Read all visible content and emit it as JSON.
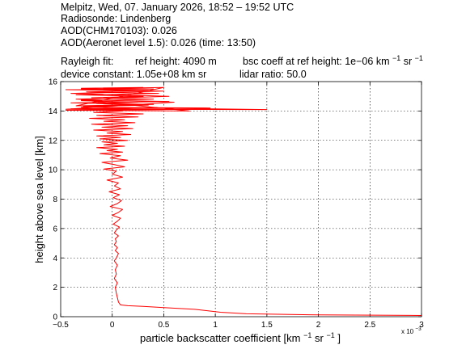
{
  "header": {
    "line1": "Melpitz, Wed, 07. January 2026, 18:52 – 19:52 UTC",
    "line2": "Radiosonde: Lindenberg",
    "line3": "AOD(CHM170103): 0.026",
    "line4": "AOD(Aeronet level 1.5): 0.026   (time: 13:50)",
    "rayleigh_fit_label": "Rayleigh fit:",
    "ref_height": "ref height: 4090 m",
    "bsc_coeff_prefix": "bsc coeff at ref height: 1e−06 km",
    "device_constant": "device constant: 1.05e+08 km sr",
    "lidar_ratio": "lidar ratio: 50.0",
    "unit_exp_minus1": "−1",
    "unit_sr": "sr"
  },
  "chart_data": {
    "type": "line",
    "xlabel_prefix": "particle backscatter coefficient [km",
    "xlabel_sr": "sr",
    "xlabel_suffix": "]",
    "xlabel_exp": "−1",
    "x_multiplier_base": "x 10",
    "x_multiplier_exp": "−3",
    "ylabel": "height above sea level [km]",
    "xlim": [
      -0.5,
      3
    ],
    "ylim": [
      0,
      16
    ],
    "xticks": [
      -0.5,
      0,
      0.5,
      1,
      1.5,
      2,
      2.5,
      3
    ],
    "xtick_labels": [
      "−0.5",
      "0",
      "0.5",
      "1",
      "1.5",
      "2",
      "2.5",
      "3"
    ],
    "yticks": [
      0,
      2,
      4,
      6,
      8,
      10,
      12,
      14,
      16
    ],
    "ytick_labels": [
      "0",
      "2",
      "4",
      "6",
      "8",
      "10",
      "12",
      "14",
      "16"
    ],
    "grid": true,
    "line_color": "#ff0000",
    "series": [
      {
        "x": [
          3.0,
          2.0,
          1.3,
          1.05,
          0.8,
          0.5,
          0.3,
          0.15,
          0.08,
          0.06,
          0.05,
          0.04,
          0.03,
          0.05,
          0.02,
          0.04,
          0.03,
          0.05,
          0.02,
          0.04,
          0.06,
          0.03,
          0.05,
          0.02,
          0.04,
          0.03,
          0.06,
          0.02,
          0.04,
          0.07,
          0.01,
          0.05,
          0.08,
          0.0,
          0.06,
          0.1,
          -0.02,
          0.05,
          0.09,
          0.01,
          0.07,
          -0.03,
          0.08,
          0.02,
          0.06,
          -0.05,
          0.1,
          0.0,
          0.04,
          -0.08,
          0.12,
          0.02,
          -0.1,
          0.15,
          -0.02,
          0.08,
          -0.12,
          0.1,
          -0.05,
          0.05,
          -0.15,
          0.12,
          -0.08,
          0.05,
          -0.1,
          0.15,
          -0.12,
          0.08,
          -0.15,
          0.18,
          -0.05,
          0.1,
          -0.18,
          0.2,
          -0.1,
          0.15,
          -0.2,
          0.22,
          -0.08,
          0.12,
          -0.22,
          0.25,
          -0.15,
          0.3,
          -0.18,
          0.1,
          -0.25,
          0.3,
          -0.1,
          0.2,
          -0.28,
          0.35,
          -0.15,
          0.25,
          -0.3,
          0.4,
          -0.2,
          0.3,
          -0.35,
          0.45,
          -0.25,
          0.35,
          -0.3,
          0.5,
          -0.35,
          0.4,
          -0.4,
          0.55,
          -0.3,
          0.75,
          -0.45,
          0.5,
          -0.4,
          0.95,
          -0.3,
          1.5,
          -0.45,
          0.6,
          -0.35,
          0.55,
          -0.4,
          0.5,
          -0.45,
          0.4,
          -0.3,
          0.3
        ],
        "y": [
          0.08,
          0.12,
          0.2,
          0.3,
          0.5,
          0.62,
          0.7,
          0.75,
          0.8,
          1.0,
          1.3,
          1.6,
          2.0,
          2.3,
          2.6,
          2.9,
          3.2,
          3.5,
          3.8,
          4.0,
          4.3,
          4.5,
          4.7,
          4.9,
          5.1,
          5.3,
          5.5,
          5.7,
          5.9,
          6.1,
          6.3,
          6.5,
          6.7,
          6.9,
          7.1,
          7.3,
          7.5,
          7.7,
          7.9,
          8.1,
          8.3,
          8.5,
          8.7,
          8.9,
          9.1,
          9.3,
          9.5,
          9.7,
          9.9,
          10.05,
          10.2,
          10.35,
          10.5,
          10.65,
          10.8,
          10.95,
          11.1,
          11.2,
          11.3,
          11.4,
          11.5,
          11.6,
          11.7,
          11.8,
          11.9,
          12.0,
          12.1,
          12.2,
          12.3,
          12.4,
          12.5,
          12.6,
          12.7,
          12.8,
          12.9,
          13.0,
          13.1,
          13.2,
          13.3,
          13.4,
          13.5,
          13.6,
          13.7,
          13.8,
          13.9,
          14.0,
          14.05,
          14.1,
          14.15,
          14.2,
          14.3,
          14.4,
          14.5,
          14.6,
          14.7,
          14.8,
          14.9,
          15.0,
          15.1,
          15.2,
          15.3,
          15.4,
          15.5,
          15.6,
          14.35,
          14.45,
          14.55,
          14.65,
          14.75,
          14.0,
          14.05,
          14.1,
          14.15,
          14.2,
          14.25,
          14.1,
          14.12,
          14.6,
          14.8,
          15.0,
          15.2,
          15.35,
          15.45,
          15.5,
          15.55,
          15.6
        ]
      }
    ]
  }
}
